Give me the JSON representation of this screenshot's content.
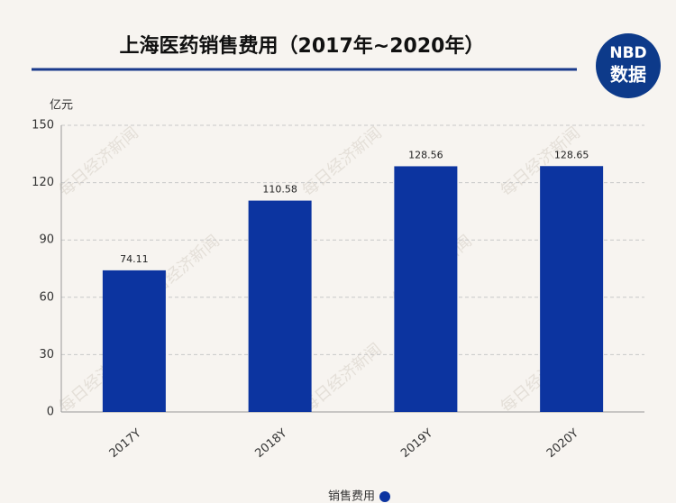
{
  "chart_data": {
    "type": "bar",
    "title": "上海医药销售费用（2017年~2020年）",
    "y_label": "亿元",
    "logo": [
      "NBD",
      "数据"
    ],
    "watermark": "每日经济新闻",
    "categories": [
      "2017Y",
      "2018Y",
      "2019Y",
      "2020Y"
    ],
    "series": [
      {
        "name": "销售费用",
        "color": "#0c34a0",
        "values": [
          74.11,
          110.58,
          128.56,
          128.65
        ]
      }
    ],
    "ylim": [
      0,
      150
    ],
    "yticks": [
      0,
      30,
      60,
      90,
      120,
      150
    ],
    "grid": true,
    "legend": "bottom"
  }
}
